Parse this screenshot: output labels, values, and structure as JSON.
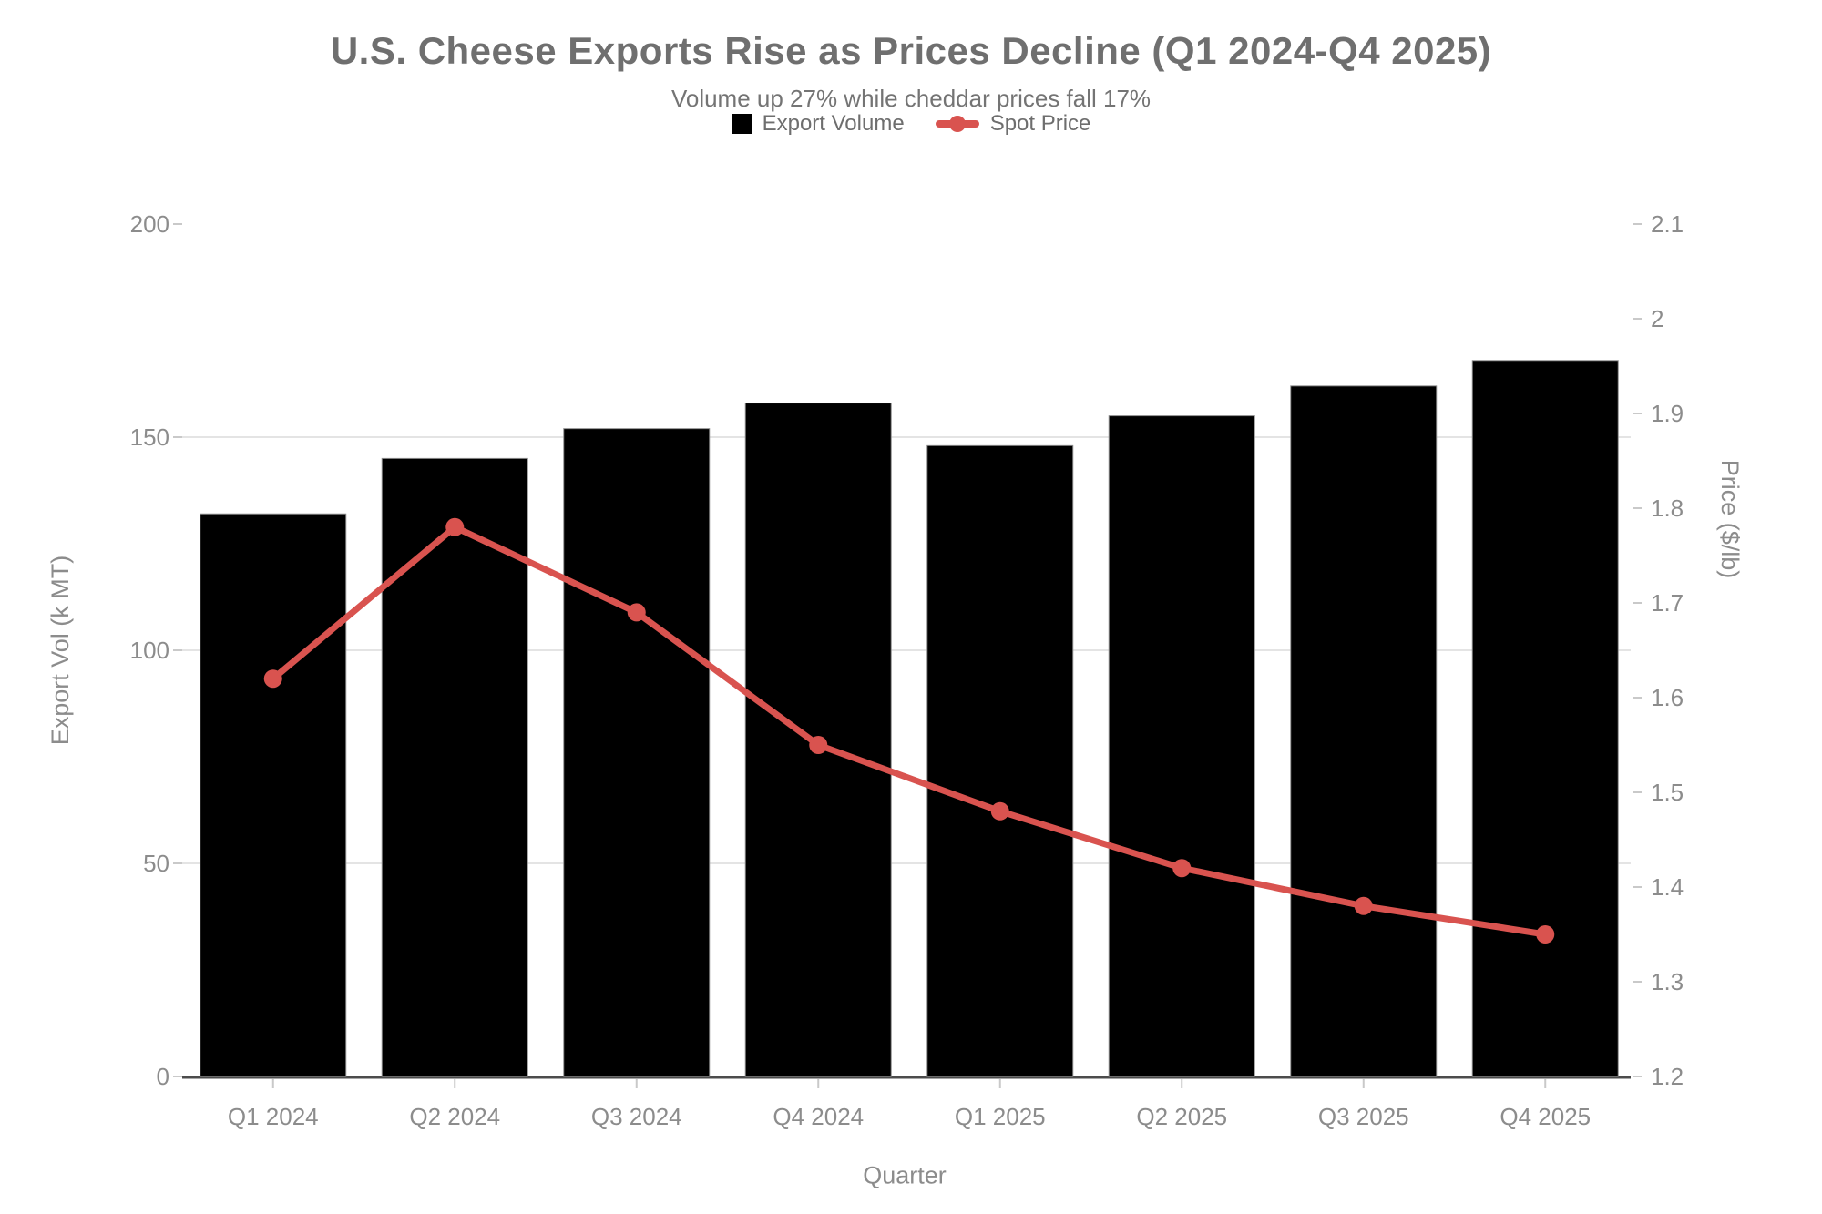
{
  "title": "U.S. Cheese Exports Rise as Prices Decline (Q1 2024-Q4 2025)",
  "subtitle": "Volume up 27% while cheddar prices fall 17%",
  "legend": {
    "items": [
      {
        "label": "Export Volume",
        "type": "bar",
        "color": "#000000"
      },
      {
        "label": "Spot Price",
        "type": "line",
        "color": "#d9534f"
      }
    ]
  },
  "chart_data": {
    "type": "combo",
    "categories": [
      "Q1 2024",
      "Q2 2024",
      "Q3 2024",
      "Q4 2024",
      "Q1 2025",
      "Q2 2025",
      "Q3 2025",
      "Q4 2025"
    ],
    "series": [
      {
        "name": "Export Volume",
        "type": "bar",
        "axis": "left",
        "color": "#000000",
        "values": [
          132,
          145,
          152,
          158,
          148,
          155,
          162,
          168
        ]
      },
      {
        "name": "Spot Price",
        "type": "line",
        "axis": "right",
        "color": "#d9534f",
        "values": [
          1.62,
          1.78,
          1.69,
          1.55,
          1.48,
          1.42,
          1.38,
          1.35
        ]
      }
    ],
    "title": "U.S. Cheese Exports Rise as Prices Decline (Q1 2024-Q4 2025)",
    "subtitle": "Volume up 27% while cheddar prices fall 17%",
    "xlabel": "Quarter",
    "y_left": {
      "label": "Export Vol (k MT)",
      "ticks": [
        "0",
        "50",
        "100",
        "150",
        "200"
      ],
      "range": [
        0,
        200
      ]
    },
    "y_right": {
      "label": "Price ($/lb)",
      "ticks": [
        "1.2",
        "1.3",
        "1.4",
        "1.5",
        "1.6",
        "1.7",
        "1.8",
        "1.9",
        "2",
        "2.1"
      ],
      "range": [
        1.2,
        2.1
      ]
    },
    "grid": true,
    "legend_position": "top"
  },
  "colors": {
    "accent_red": "#d9534f",
    "bar_black": "#000000",
    "title_gray": "#6f6f6f",
    "text_gray": "#8c8c8c",
    "grid_gray": "#e4e4e4",
    "tick_gray": "#c9c9c9",
    "axis_line_gray": "#4c4c4c"
  }
}
